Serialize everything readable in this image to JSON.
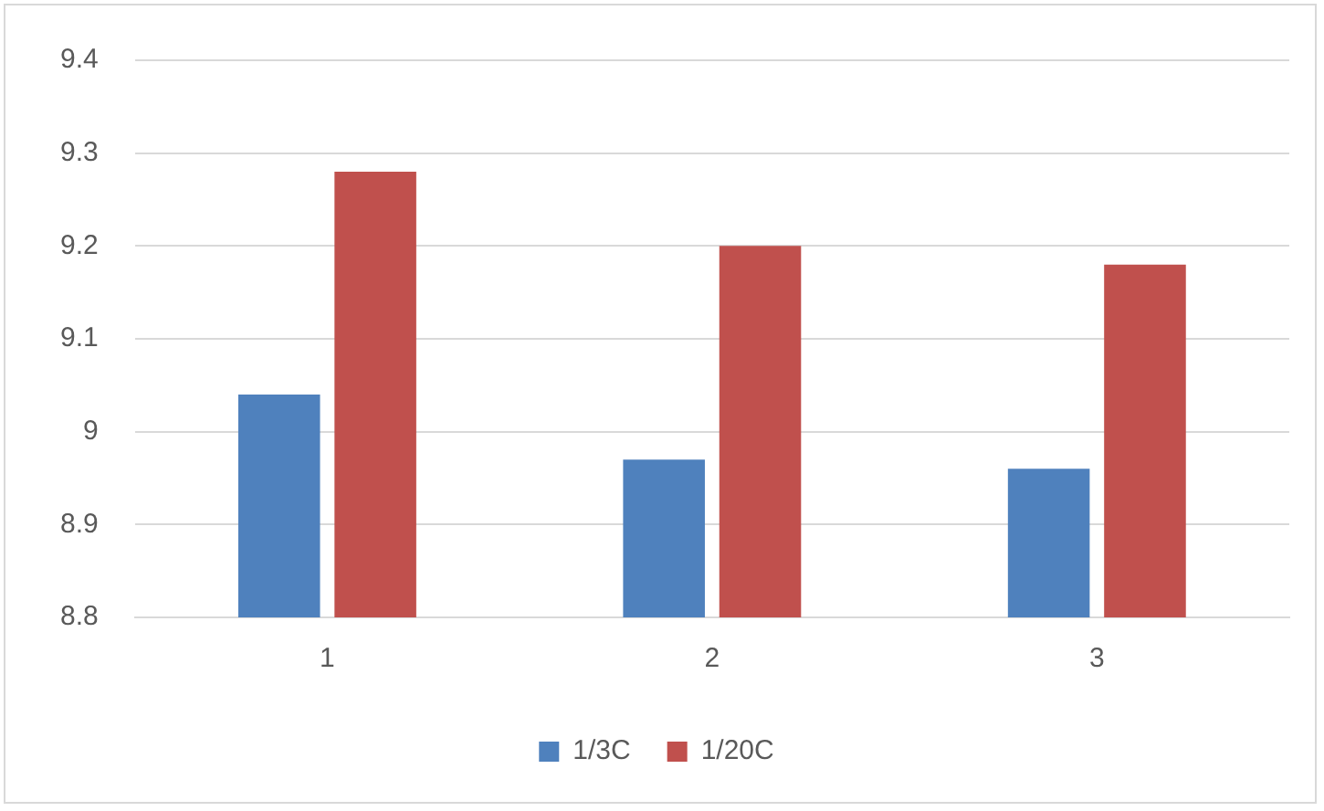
{
  "chart_data": {
    "type": "bar",
    "categories": [
      "1",
      "2",
      "3"
    ],
    "series": [
      {
        "name": "1/3C",
        "color": "#4f81bd",
        "values": [
          9.04,
          8.97,
          8.96
        ]
      },
      {
        "name": "1/20C",
        "color": "#c0504d",
        "values": [
          9.28,
          9.2,
          9.18
        ]
      }
    ],
    "ylim": [
      8.8,
      9.4
    ],
    "yticks": [
      8.8,
      8.9,
      9,
      9.1,
      9.2,
      9.3,
      9.4
    ],
    "grid": "y",
    "legend": "bottom"
  }
}
